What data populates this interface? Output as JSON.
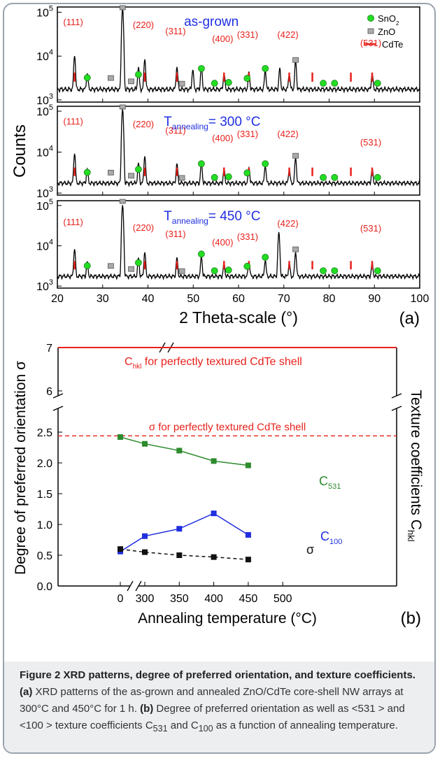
{
  "chart_data": [
    {
      "type": "line",
      "panel": "(a)",
      "xlabel": "2 Theta-scale (°)",
      "ylabel": "Counts",
      "xlim": [
        20,
        100
      ],
      "x_ticks": [
        "20",
        "30",
        "40",
        "50",
        "60",
        "70",
        "80",
        "90",
        "100"
      ],
      "y_scale": "log",
      "y_ticks": [
        "10^3",
        "10^4",
        "10^5"
      ],
      "legend": {
        "placement": "top-right",
        "entries": [
          {
            "name": "SnO2",
            "marker": "green-circle"
          },
          {
            "name": "ZnO",
            "marker": "gray-square"
          },
          {
            "name": "CdTe",
            "marker": "red-line"
          }
        ]
      },
      "peak_markers": {
        "SnO2": [
          26.6,
          37.9,
          51.8,
          54.7,
          57.8,
          61.9,
          65.9,
          78.7,
          81.2,
          90.7
        ],
        "ZnO": [
          31.8,
          36.3,
          47.5,
          72.6
        ],
        "CdTe": [
          23.8,
          39.3,
          46.4,
          56.8,
          62.3,
          71.2,
          76.3,
          84.8,
          89.5
        ]
      },
      "subplots": [
        {
          "label": "as-grown",
          "peaks": [
            [
              23.8,
              8500
            ],
            [
              26.6,
              2300
            ],
            [
              34.4,
              120000
            ],
            [
              37.9,
              3800
            ],
            [
              39.3,
              6800
            ],
            [
              46.4,
              3900
            ],
            [
              49.9,
              3200
            ],
            [
              51.8,
              4200
            ],
            [
              56.8,
              2300
            ],
            [
              62.3,
              2600
            ],
            [
              65.9,
              3000
            ],
            [
              69.1,
              3500
            ],
            [
              71.2,
              2200
            ],
            [
              72.6,
              6000
            ],
            [
              89.5,
              2300
            ]
          ],
          "hkl_labels": [
            "(111)",
            "(220)",
            "(311)",
            "(400)",
            "(331)",
            "(422)",
            "(531)"
          ]
        },
        {
          "label_main": "T",
          "label_sub": "annealing",
          "label_rest": "= 300 °C",
          "peaks": [
            [
              23.8,
              7500
            ],
            [
              26.6,
              2200
            ],
            [
              34.4,
              110000
            ],
            [
              37.9,
              3600
            ],
            [
              39.3,
              6200
            ],
            [
              46.4,
              3500
            ],
            [
              51.8,
              4000
            ],
            [
              56.8,
              2100
            ],
            [
              62.3,
              2500
            ],
            [
              65.9,
              2900
            ],
            [
              71.2,
              2100
            ],
            [
              72.6,
              5500
            ],
            [
              89.5,
              2100
            ]
          ],
          "hkl_labels": [
            "(111)",
            "(220)",
            "(311)",
            "(400)",
            "(331)",
            "(422)",
            "(531)"
          ]
        },
        {
          "label_main": "T",
          "label_sub": "annealing",
          "label_rest": "= 450 °C",
          "peaks": [
            [
              23.8,
              6500
            ],
            [
              26.6,
              2200
            ],
            [
              34.4,
              100000
            ],
            [
              37.9,
              3300
            ],
            [
              39.3,
              5200
            ],
            [
              46.4,
              3300
            ],
            [
              51.8,
              3700
            ],
            [
              56.8,
              2000
            ],
            [
              62.3,
              2400
            ],
            [
              65.9,
              2700
            ],
            [
              68.9,
              20000
            ],
            [
              71.2,
              2000
            ],
            [
              72.6,
              5200
            ],
            [
              89.5,
              2000
            ]
          ],
          "hkl_labels": [
            "(111)",
            "(220)",
            "(311)",
            "(400)",
            "(331)",
            "(422)",
            "(531)"
          ]
        }
      ]
    },
    {
      "type": "line",
      "panel": "(b)",
      "xlabel": "Annealing temperature (°C)",
      "ylabel": "Degree of preferred orientation σ",
      "ylabel_right": "Texture coefficients C",
      "ylabel_right_sub": "hkl",
      "x_ticks": [
        "0",
        "300",
        "350",
        "400",
        "450",
        "500"
      ],
      "y_ticks": [
        "0.0",
        "0.5",
        "1.0",
        "1.5",
        "2.0",
        "2.5",
        "6",
        "7"
      ],
      "ylim_lower": [
        0.0,
        2.7
      ],
      "ylim_upper": [
        6,
        7
      ],
      "x": [
        0,
        300,
        350,
        400,
        450
      ],
      "series": [
        {
          "name": "C531",
          "label_main": "C",
          "label_sub": "531",
          "values": [
            2.42,
            2.31,
            2.2,
            2.03,
            1.96
          ],
          "color": "#2e8b2e",
          "style": "solid"
        },
        {
          "name": "C100",
          "label_main": "C",
          "label_sub": "100",
          "values": [
            0.56,
            0.81,
            0.93,
            1.18,
            0.83
          ],
          "color": "#1f2fe0",
          "style": "solid"
        },
        {
          "name": "σ",
          "label_main": "σ",
          "values": [
            0.6,
            0.55,
            0.5,
            0.47,
            0.43
          ],
          "color": "#111111",
          "style": "dashed"
        }
      ],
      "reference_lines": [
        {
          "label": "σ for perfectly textured CdTe shell",
          "y": 2.44,
          "style": "dashed",
          "color": "#e8211b"
        },
        {
          "label_main": "C",
          "label_sub": "hkl",
          "label_rest": " for perfectly textured CdTe shell",
          "y": 7,
          "style": "solid",
          "color": "#e8211b"
        }
      ]
    }
  ],
  "caption": {
    "title": "Figure 2 XRD patterns, degree of preferred orientation, and texture coefficients.",
    "part_a_label": "(a)",
    "part_a_text": " XRD patterns of the as-grown and annealed ZnO/CdTe core-shell NW arrays at 300°C and 450°C for 1 h. ",
    "part_b_label": "(b)",
    "part_b_text_1": " Degree of preferred orientation as well as <531 > and <100 > texture coefficients C",
    "sub_531": "531",
    "part_b_text_2": " and C",
    "sub_100": "100",
    "part_b_text_3": " as a function of annealing temperature."
  },
  "colors": {
    "hkl_label": "#e8211b",
    "panel_label_blue": "#1f2fe0",
    "sno2": "#22dd22",
    "zno": "#aaaaaa",
    "cdte": "#e8211b"
  }
}
